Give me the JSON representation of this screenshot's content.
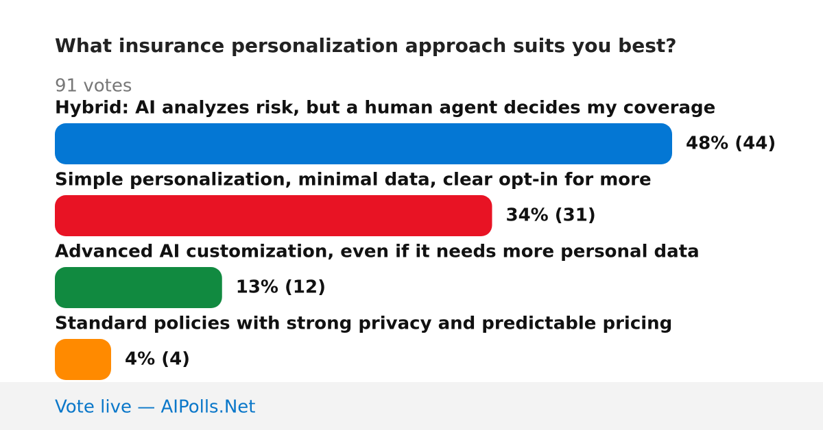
{
  "chart_data": {
    "type": "bar",
    "title": "What insurance personalization approach suits you best?",
    "subtitle": "91 votes",
    "categories": [
      "Hybrid: AI analyzes risk, but a human agent decides my coverage",
      "Simple personalization, minimal data, clear opt-in for more",
      "Advanced AI customization, even if it needs more personal data",
      "Standard policies with strong privacy and predictable pricing"
    ],
    "values": [
      48,
      34,
      13,
      4
    ],
    "value_labels": [
      "48% (44)",
      "34% (31)",
      "13% (12)",
      "4% (4)"
    ],
    "colors": [
      "#0477d4",
      "#e81324",
      "#118a40",
      "#ff8a00"
    ],
    "footer": "Vote live — AIPolls.Net"
  }
}
